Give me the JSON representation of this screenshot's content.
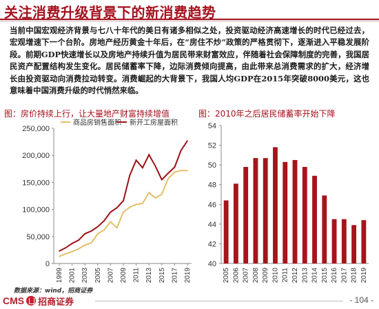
{
  "title": "关注消费升级背景下的新消费趋势",
  "paragraph": "当前中国宏观经济背景与七八十年代的美日有诸多相似之处，投资驱动经济高速增长的时代已经过去，宏观增速下一个台阶。房地产经历黄金十年后，在“房住不炒”政策的严格贯彻下，逐渐进入平稳发展阶段。前期GDP快速增长以及房地产持续升值为居民带来财富效应，伴随着社会保障制度的完善，我国居民资产配置结构发生变化。居民储蓄率下降，边际消费倾向提高，由此带来总消费需求的扩大，经济增长由投资驱动向消费拉动转变。消费崛起的大背景下，我国人均GDP在2015年突破8000美元，这也意味着中国消费升级的时代悄然来临。",
  "source": "数据来源：wind，招商证券",
  "logo": {
    "cms": "CMS",
    "name": "招商证券"
  },
  "page_number": "- 104 -",
  "colors": {
    "brand_red": "#a5101e",
    "line_gold": "#e3bf66",
    "line_red": "#9c1116",
    "bar_red": "#a5151b"
  },
  "chart_data": [
    {
      "type": "line",
      "title": "图：房价持续上行，让大量地产财富持续增值",
      "x": [
        "1999",
        "2000",
        "2001",
        "2002",
        "2003",
        "2004",
        "2005",
        "2006",
        "2007",
        "2008",
        "2009",
        "2010",
        "2011",
        "2012",
        "2013",
        "2014",
        "2015",
        "2016",
        "2017",
        "2018",
        "2019"
      ],
      "x_ticks": [
        "1999",
        "2001",
        "2003",
        "2005",
        "2007",
        "2009",
        "2011",
        "2013",
        "2015",
        "2017",
        "2019"
      ],
      "ylim": [
        0,
        250000
      ],
      "y_ticks": [
        "0",
        "50,000",
        "100,000",
        "150,000",
        "200,000",
        "250,000"
      ],
      "y_tick_values": [
        0,
        50000,
        100000,
        150000,
        200000,
        250000
      ],
      "legend_position": "top",
      "series": [
        {
          "name": "商品房销售面积",
          "color": "#e3bf66",
          "values": [
            13000,
            18000,
            22000,
            27000,
            34000,
            38000,
            55000,
            62000,
            77000,
            66000,
            95000,
            104000,
            109000,
            111000,
            131000,
            121000,
            128000,
            157000,
            169000,
            172000,
            172000
          ]
        },
        {
          "name": "新开工房屋面积",
          "color": "#9c1116",
          "values": [
            23000,
            29000,
            37000,
            43000,
            55000,
            60000,
            68000,
            79000,
            95000,
            103000,
            116000,
            163000,
            191000,
            177000,
            201000,
            180000,
            155000,
            167000,
            178000,
            209000,
            227000
          ]
        }
      ]
    },
    {
      "type": "bar",
      "title": "图：2010年之后居民储蓄率开始下降",
      "categories": [
        "2005",
        "2006",
        "2007",
        "2008",
        "2009",
        "2010",
        "2011",
        "2012",
        "2013",
        "2014",
        "2015",
        "2016",
        "2017",
        "2018",
        "2019"
      ],
      "values": [
        46.4,
        48.1,
        49.8,
        50.7,
        50.7,
        51.8,
        50.3,
        50.5,
        49.8,
        48.9,
        46.9,
        44.5,
        44.5,
        43.9,
        44.4
      ],
      "ylim": [
        40,
        54
      ],
      "y_ticks": [
        "40",
        "42",
        "44",
        "46",
        "48",
        "50",
        "52",
        "54"
      ],
      "y_tick_values": [
        40,
        42,
        44,
        46,
        48,
        50,
        52,
        54
      ],
      "color": "#a5151b"
    }
  ]
}
